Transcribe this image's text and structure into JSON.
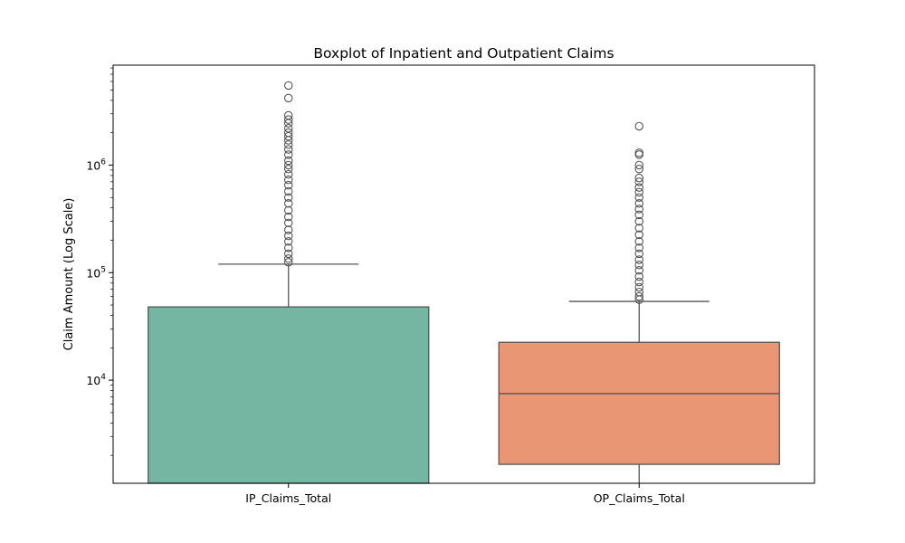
{
  "chart_data": {
    "type": "box",
    "title": "Boxplot of Inpatient and Outpatient Claims",
    "xlabel": "",
    "ylabel": "Claim Amount (Log Scale)",
    "y_scale": "log",
    "ylim": [
      1100,
      8500000
    ],
    "y_ticks": [
      {
        "value": 10000,
        "base": "10",
        "exp": "4"
      },
      {
        "value": 100000,
        "base": "10",
        "exp": "5"
      },
      {
        "value": 1000000,
        "base": "10",
        "exp": "6"
      }
    ],
    "grid": false,
    "legend": "none",
    "categories": [
      "IP_Claims_Total",
      "OP_Claims_Total"
    ],
    "boxes": [
      {
        "category": "IP_Claims_Total",
        "color": "#74b6a1",
        "q1": 0,
        "median": 0,
        "q3": 48000,
        "whisker_low": 0,
        "whisker_high": 120000,
        "outliers": [
          125000,
          135000,
          150000,
          170000,
          195000,
          220000,
          250000,
          290000,
          330000,
          380000,
          440000,
          500000,
          570000,
          650000,
          730000,
          820000,
          920000,
          1000000,
          1100000,
          1250000,
          1400000,
          1550000,
          1700000,
          1850000,
          2000000,
          2200000,
          2450000,
          2650000,
          2900000,
          4200000,
          5500000
        ]
      },
      {
        "category": "OP_Claims_Total",
        "color": "#e99674",
        "q1": 1650,
        "median": 7500,
        "q3": 22500,
        "whisker_low": 1100,
        "whisker_high": 54000,
        "outliers": [
          56000,
          60000,
          66000,
          73000,
          82000,
          92000,
          105000,
          118000,
          132000,
          150000,
          170000,
          195000,
          225000,
          260000,
          300000,
          345000,
          390000,
          440000,
          500000,
          560000,
          620000,
          700000,
          760000,
          920000,
          1000000,
          1250000,
          1300000,
          2300000
        ]
      }
    ]
  }
}
